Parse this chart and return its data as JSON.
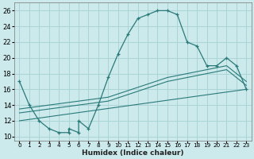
{
  "xlabel": "Humidex (Indice chaleur)",
  "bg_color": "#cce9eb",
  "grid_color": "#aad4d6",
  "line_color": "#2a7a7a",
  "xlim": [
    -0.5,
    23.5
  ],
  "ylim": [
    9.5,
    27.0
  ],
  "xticks": [
    0,
    1,
    2,
    3,
    4,
    5,
    6,
    7,
    8,
    9,
    10,
    11,
    12,
    13,
    14,
    15,
    16,
    17,
    18,
    19,
    20,
    21,
    22,
    23
  ],
  "yticks": [
    10,
    12,
    14,
    16,
    18,
    20,
    22,
    24,
    26
  ],
  "curve1_x": [
    0,
    1,
    2,
    3,
    4,
    5,
    5,
    6,
    6,
    7,
    8,
    9,
    10,
    11,
    12,
    13,
    14,
    15,
    16,
    17,
    18,
    19,
    20,
    21,
    22,
    23
  ],
  "curve1_y": [
    17,
    14,
    12,
    11,
    10.5,
    10.5,
    11.0,
    10.5,
    12.0,
    11.0,
    14.0,
    17.5,
    20.5,
    23.0,
    25.0,
    25.5,
    26.0,
    26.0,
    25.5,
    22.0,
    21.5,
    19.0,
    19.0,
    20.0,
    19.0,
    16.0
  ],
  "line2_x": [
    0,
    23
  ],
  "line2_y": [
    12.0,
    16.0
  ],
  "line3_x": [
    0,
    9,
    15,
    21,
    23
  ],
  "line3_y": [
    13.0,
    14.5,
    17.0,
    18.5,
    16.5
  ],
  "line4_x": [
    0,
    9,
    15,
    21,
    23
  ],
  "line4_y": [
    13.5,
    15.0,
    17.5,
    19.0,
    17.0
  ]
}
